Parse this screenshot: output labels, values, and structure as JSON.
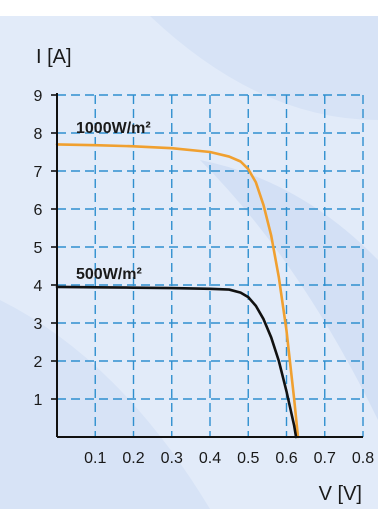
{
  "chart_data": {
    "type": "line",
    "title": "",
    "xlabel": "V [V]",
    "ylabel": "I [A]",
    "xlim": [
      0,
      0.8
    ],
    "ylim": [
      0,
      9
    ],
    "x_ticks": [
      "0.1",
      "0.2",
      "0.3",
      "0.4",
      "0.5",
      "0.6",
      "0.7",
      "0.8"
    ],
    "y_ticks": [
      "1",
      "2",
      "3",
      "4",
      "5",
      "6",
      "7",
      "8",
      "9"
    ],
    "grid": true,
    "grid_style": "dashed",
    "colors": {
      "background": "#e2ebf9",
      "grid": "#2f8fcf",
      "axis": "#111111"
    },
    "series": [
      {
        "name": "1000W/m²",
        "color": "#f0a030",
        "x": [
          0.0,
          0.1,
          0.2,
          0.3,
          0.4,
          0.45,
          0.48,
          0.5,
          0.52,
          0.54,
          0.56,
          0.58,
          0.6,
          0.61,
          0.62,
          0.63
        ],
        "y": [
          7.7,
          7.68,
          7.65,
          7.6,
          7.5,
          7.38,
          7.25,
          7.05,
          6.7,
          6.1,
          5.3,
          4.2,
          2.8,
          1.9,
          1.0,
          0.0
        ]
      },
      {
        "name": "500W/m²",
        "color": "#111111",
        "x": [
          0.0,
          0.1,
          0.2,
          0.3,
          0.4,
          0.45,
          0.48,
          0.5,
          0.52,
          0.54,
          0.56,
          0.58,
          0.6,
          0.61,
          0.62,
          0.625
        ],
        "y": [
          3.95,
          3.94,
          3.93,
          3.92,
          3.9,
          3.88,
          3.8,
          3.68,
          3.45,
          3.1,
          2.62,
          2.0,
          1.2,
          0.75,
          0.3,
          0.0
        ]
      }
    ]
  }
}
